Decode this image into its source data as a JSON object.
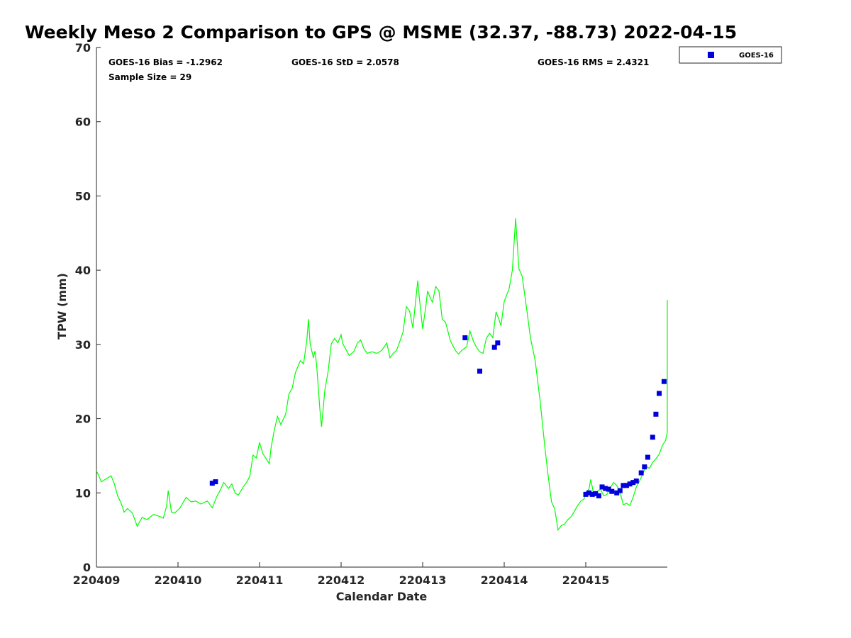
{
  "chart_data": {
    "type": "scatter",
    "title": "Weekly Meso 2 Comparison to GPS @ MSME (32.37, -88.73) 2022-04-15",
    "xlabel": "Calendar Date",
    "ylabel": "TPW (mm)",
    "xlim": [
      0,
      7
    ],
    "ylim": [
      0,
      70
    ],
    "x_ticks": [
      {
        "pos": 0,
        "label": "220409"
      },
      {
        "pos": 1,
        "label": "220410"
      },
      {
        "pos": 2,
        "label": "220411"
      },
      {
        "pos": 3,
        "label": "220412"
      },
      {
        "pos": 4,
        "label": "220413"
      },
      {
        "pos": 5,
        "label": "220414"
      },
      {
        "pos": 6,
        "label": "220415"
      }
    ],
    "y_ticks": [
      0,
      10,
      20,
      30,
      40,
      50,
      60,
      70
    ],
    "grid": false,
    "legend": {
      "position": "outside-top-right",
      "entries": [
        "GOES-16"
      ]
    },
    "colors": {
      "gps_line": "#00ff00",
      "goes": "#0000dd",
      "axis": "#262626"
    },
    "stats": {
      "bias": "GOES-16 Bias = -1.2962",
      "std": "GOES-16 StD = 2.0578",
      "rms": "GOES-16 RMS = 2.4321",
      "sample": "Sample Size = 29"
    },
    "series": [
      {
        "kind": "line",
        "points": [
          [
            0.0,
            13.0
          ],
          [
            0.06,
            11.5
          ],
          [
            0.12,
            11.9
          ],
          [
            0.18,
            12.3
          ],
          [
            0.22,
            11.2
          ],
          [
            0.26,
            9.6
          ],
          [
            0.3,
            8.7
          ],
          [
            0.34,
            7.4
          ],
          [
            0.38,
            7.9
          ],
          [
            0.44,
            7.3
          ],
          [
            0.5,
            5.5
          ],
          [
            0.56,
            6.7
          ],
          [
            0.62,
            6.4
          ],
          [
            0.7,
            7.1
          ],
          [
            0.78,
            6.8
          ],
          [
            0.82,
            6.6
          ],
          [
            0.86,
            8.2
          ],
          [
            0.88,
            10.3
          ],
          [
            0.92,
            7.4
          ],
          [
            0.96,
            7.3
          ],
          [
            1.02,
            7.9
          ],
          [
            1.1,
            9.4
          ],
          [
            1.16,
            8.8
          ],
          [
            1.22,
            8.9
          ],
          [
            1.28,
            8.5
          ],
          [
            1.36,
            8.9
          ],
          [
            1.42,
            8.0
          ],
          [
            1.48,
            9.6
          ],
          [
            1.52,
            10.4
          ],
          [
            1.56,
            11.4
          ],
          [
            1.62,
            10.6
          ],
          [
            1.66,
            11.2
          ],
          [
            1.7,
            10.0
          ],
          [
            1.74,
            9.7
          ],
          [
            1.8,
            10.8
          ],
          [
            1.84,
            11.4
          ],
          [
            1.88,
            12.2
          ],
          [
            1.92,
            15.1
          ],
          [
            1.96,
            14.7
          ],
          [
            2.0,
            16.8
          ],
          [
            2.04,
            15.3
          ],
          [
            2.08,
            14.6
          ],
          [
            2.12,
            13.9
          ],
          [
            2.14,
            16.0
          ],
          [
            2.18,
            18.4
          ],
          [
            2.22,
            20.3
          ],
          [
            2.26,
            19.2
          ],
          [
            2.32,
            20.6
          ],
          [
            2.36,
            23.3
          ],
          [
            2.4,
            24.1
          ],
          [
            2.44,
            26.2
          ],
          [
            2.5,
            27.8
          ],
          [
            2.54,
            27.4
          ],
          [
            2.58,
            30.6
          ],
          [
            2.6,
            33.4
          ],
          [
            2.62,
            30.1
          ],
          [
            2.66,
            28.2
          ],
          [
            2.68,
            29.1
          ],
          [
            2.7,
            27.2
          ],
          [
            2.74,
            21.2
          ],
          [
            2.76,
            18.9
          ],
          [
            2.8,
            23.8
          ],
          [
            2.84,
            26.3
          ],
          [
            2.88,
            30.1
          ],
          [
            2.92,
            30.8
          ],
          [
            2.96,
            30.2
          ],
          [
            3.0,
            31.3
          ],
          [
            3.02,
            30.1
          ],
          [
            3.06,
            29.3
          ],
          [
            3.1,
            28.5
          ],
          [
            3.16,
            29.1
          ],
          [
            3.2,
            30.2
          ],
          [
            3.24,
            30.6
          ],
          [
            3.28,
            29.4
          ],
          [
            3.32,
            28.8
          ],
          [
            3.38,
            29.0
          ],
          [
            3.44,
            28.8
          ],
          [
            3.5,
            29.2
          ],
          [
            3.56,
            30.2
          ],
          [
            3.6,
            28.2
          ],
          [
            3.64,
            28.8
          ],
          [
            3.68,
            29.2
          ],
          [
            3.72,
            30.4
          ],
          [
            3.76,
            31.7
          ],
          [
            3.8,
            35.1
          ],
          [
            3.84,
            34.5
          ],
          [
            3.88,
            32.2
          ],
          [
            3.92,
            36.5
          ],
          [
            3.94,
            38.6
          ],
          [
            3.96,
            36.2
          ],
          [
            4.0,
            32.1
          ],
          [
            4.04,
            35.2
          ],
          [
            4.06,
            37.2
          ],
          [
            4.1,
            36.1
          ],
          [
            4.12,
            35.7
          ],
          [
            4.16,
            37.8
          ],
          [
            4.2,
            37.2
          ],
          [
            4.24,
            33.4
          ],
          [
            4.28,
            33.0
          ],
          [
            4.34,
            30.5
          ],
          [
            4.4,
            29.2
          ],
          [
            4.44,
            28.7
          ],
          [
            4.48,
            29.2
          ],
          [
            4.54,
            29.7
          ],
          [
            4.58,
            31.8
          ],
          [
            4.62,
            30.5
          ],
          [
            4.66,
            29.6
          ],
          [
            4.7,
            29.0
          ],
          [
            4.74,
            28.8
          ],
          [
            4.78,
            30.8
          ],
          [
            4.82,
            31.5
          ],
          [
            4.86,
            30.9
          ],
          [
            4.9,
            34.4
          ],
          [
            4.94,
            33.2
          ],
          [
            4.96,
            32.5
          ],
          [
            5.0,
            35.8
          ],
          [
            5.06,
            37.5
          ],
          [
            5.1,
            40.0
          ],
          [
            5.14,
            47.0
          ],
          [
            5.18,
            40.2
          ],
          [
            5.22,
            39.2
          ],
          [
            5.28,
            34.4
          ],
          [
            5.32,
            31.0
          ],
          [
            5.38,
            27.8
          ],
          [
            5.44,
            22.4
          ],
          [
            5.5,
            16.0
          ],
          [
            5.54,
            12.2
          ],
          [
            5.58,
            8.8
          ],
          [
            5.62,
            7.8
          ],
          [
            5.66,
            5.0
          ],
          [
            5.7,
            5.6
          ],
          [
            5.74,
            5.8
          ],
          [
            5.78,
            6.4
          ],
          [
            5.82,
            6.8
          ],
          [
            5.86,
            7.5
          ],
          [
            5.9,
            8.3
          ],
          [
            5.94,
            8.9
          ],
          [
            5.98,
            9.2
          ],
          [
            6.0,
            10.1
          ],
          [
            6.04,
            10.5
          ],
          [
            6.06,
            11.8
          ],
          [
            6.08,
            10.8
          ],
          [
            6.1,
            9.5
          ],
          [
            6.14,
            10.2
          ],
          [
            6.18,
            10.5
          ],
          [
            6.22,
            9.6
          ],
          [
            6.26,
            9.8
          ],
          [
            6.3,
            10.7
          ],
          [
            6.34,
            11.4
          ],
          [
            6.38,
            11.0
          ],
          [
            6.42,
            10.1
          ],
          [
            6.46,
            8.4
          ],
          [
            6.5,
            8.6
          ],
          [
            6.54,
            8.3
          ],
          [
            6.58,
            9.4
          ],
          [
            6.62,
            10.8
          ],
          [
            6.66,
            11.6
          ],
          [
            6.7,
            12.6
          ],
          [
            6.74,
            13.6
          ],
          [
            6.78,
            13.3
          ],
          [
            6.82,
            14.1
          ],
          [
            6.86,
            14.6
          ],
          [
            6.9,
            15.2
          ],
          [
            6.94,
            16.4
          ],
          [
            6.98,
            17.1
          ],
          [
            7.02,
            18.2
          ],
          [
            7.06,
            19.6
          ],
          [
            7.1,
            21.4
          ],
          [
            7.14,
            23.2
          ],
          [
            7.18,
            27.2
          ],
          [
            7.22,
            31.0
          ],
          [
            7.26,
            34.2
          ],
          [
            7.28,
            36.0
          ]
        ]
      },
      {
        "name": "GOES-16",
        "kind": "scatter",
        "points": [
          [
            1.42,
            11.3
          ],
          [
            1.46,
            11.5
          ],
          [
            4.52,
            30.9
          ],
          [
            4.7,
            26.4
          ],
          [
            4.88,
            29.6
          ],
          [
            4.92,
            30.2
          ],
          [
            6.0,
            9.8
          ],
          [
            6.04,
            10.0
          ],
          [
            6.08,
            9.8
          ],
          [
            6.12,
            9.9
          ],
          [
            6.16,
            9.6
          ],
          [
            6.2,
            10.8
          ],
          [
            6.24,
            10.6
          ],
          [
            6.28,
            10.5
          ],
          [
            6.32,
            10.2
          ],
          [
            6.38,
            10.0
          ],
          [
            6.42,
            10.3
          ],
          [
            6.46,
            11.0
          ],
          [
            6.5,
            11.0
          ],
          [
            6.54,
            11.2
          ],
          [
            6.58,
            11.4
          ],
          [
            6.62,
            11.6
          ],
          [
            6.68,
            12.7
          ],
          [
            6.72,
            13.5
          ],
          [
            6.76,
            14.8
          ],
          [
            6.82,
            17.5
          ],
          [
            6.86,
            20.6
          ],
          [
            6.9,
            23.4
          ],
          [
            6.96,
            25.0
          ]
        ]
      }
    ]
  }
}
